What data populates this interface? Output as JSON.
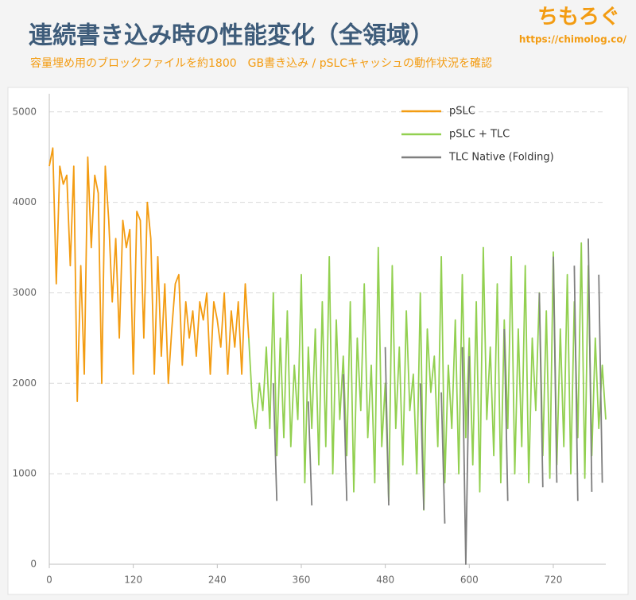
{
  "header": {
    "logo": "ちもろぐ",
    "url": "https://chimolog.co/"
  },
  "chart_data": {
    "type": "line",
    "title": "連続書き込み時の性能変化（全領域）",
    "subtitle": "容量埋め用のブロックファイルを約1800　GB書き込み / pSLCキャッシュの動作状況を確認",
    "x": [
      0,
      5,
      10,
      15,
      20,
      25,
      30,
      35,
      40,
      45,
      50,
      55,
      60,
      65,
      70,
      75,
      80,
      85,
      90,
      95,
      100,
      105,
      110,
      115,
      120,
      125,
      130,
      135,
      140,
      145,
      150,
      155,
      160,
      165,
      170,
      175,
      180,
      185,
      190,
      195,
      200,
      205,
      210,
      215,
      220,
      225,
      230,
      235,
      240,
      245,
      250,
      255,
      260,
      265,
      270,
      275,
      280,
      285,
      290,
      295,
      300,
      305,
      310,
      315,
      320,
      325,
      330,
      335,
      340,
      345,
      350,
      355,
      360,
      365,
      370,
      375,
      380,
      385,
      390,
      395,
      400,
      405,
      410,
      415,
      420,
      425,
      430,
      435,
      440,
      445,
      450,
      455,
      460,
      465,
      470,
      475,
      480,
      485,
      490,
      495,
      500,
      505,
      510,
      515,
      520,
      525,
      530,
      535,
      540,
      545,
      550,
      555,
      560,
      565,
      570,
      575,
      580,
      585,
      590,
      595,
      600,
      605,
      610,
      615,
      620,
      625,
      630,
      635,
      640,
      645,
      650,
      655,
      660,
      665,
      670,
      675,
      680,
      685,
      690,
      695,
      700,
      705,
      710,
      715,
      720,
      725,
      730,
      735,
      740,
      745,
      750,
      755,
      760,
      765,
      770,
      775,
      780,
      785,
      790,
      795
    ],
    "series": [
      {
        "name": "pSLC",
        "color": "#f39c12",
        "values": [
          4400,
          4600,
          3100,
          4400,
          4200,
          4300,
          3300,
          4400,
          1800,
          3300,
          2100,
          4500,
          3500,
          4300,
          4100,
          2000,
          4400,
          3800,
          2900,
          3600,
          2500,
          3800,
          3500,
          3700,
          2100,
          3900,
          3800,
          2500,
          4000,
          3600,
          2100,
          3400,
          2300,
          3100,
          2000,
          2600,
          3100,
          3200,
          2200,
          2900,
          2500,
          2800,
          2300,
          2900,
          2700,
          3000,
          2100,
          2900,
          2700,
          2400,
          3000,
          2100,
          2800,
          2400,
          2900,
          2100,
          3100,
          2500,
          null,
          null,
          null,
          null,
          null,
          null,
          null,
          null,
          null,
          null,
          null,
          null,
          null,
          null,
          null,
          null,
          null,
          null,
          null,
          null,
          null,
          null,
          null,
          null,
          null,
          null,
          null,
          null,
          null,
          null,
          null,
          null,
          null,
          null,
          null,
          null,
          null,
          null,
          null,
          null,
          null,
          null,
          null,
          null,
          null,
          null,
          null,
          null,
          null,
          null,
          null,
          null,
          null,
          null,
          null,
          null,
          null,
          null,
          null,
          null,
          null,
          null,
          null,
          null,
          null,
          null,
          null,
          null,
          null,
          null,
          null,
          null,
          null,
          null,
          null,
          null,
          null,
          null,
          null,
          null,
          null,
          null,
          null,
          null,
          null,
          null,
          null,
          null,
          null,
          null,
          null,
          null,
          null,
          null,
          null,
          null,
          null,
          null,
          null,
          null,
          null,
          null
        ]
      },
      {
        "name": "pSLC + TLC",
        "color": "#92d050",
        "values": [
          null,
          null,
          null,
          null,
          null,
          null,
          null,
          null,
          null,
          null,
          null,
          null,
          null,
          null,
          null,
          null,
          null,
          null,
          null,
          null,
          null,
          null,
          null,
          null,
          null,
          null,
          null,
          null,
          null,
          null,
          null,
          null,
          null,
          null,
          null,
          null,
          null,
          null,
          null,
          null,
          null,
          null,
          null,
          null,
          null,
          null,
          null,
          null,
          null,
          null,
          null,
          null,
          null,
          null,
          null,
          null,
          null,
          2500,
          1800,
          1500,
          2000,
          1700,
          2400,
          1500,
          3000,
          1200,
          2500,
          1400,
          2800,
          1300,
          2200,
          1600,
          3200,
          900,
          2400,
          1500,
          2600,
          1100,
          2900,
          1300,
          3400,
          1000,
          2700,
          1600,
          2300,
          1200,
          2900,
          800,
          2500,
          1700,
          3100,
          1400,
          2200,
          900,
          3500,
          1300,
          2000,
          700,
          3300,
          1500,
          2400,
          1100,
          2800,
          1700,
          2100,
          1000,
          3000,
          600,
          2600,
          1900,
          2300,
          1300,
          3400,
          900,
          2200,
          1500,
          2700,
          1000,
          3200,
          1400,
          2500,
          1100,
          2900,
          800,
          3500,
          1600,
          2400,
          1200,
          3100,
          900,
          2700,
          1500,
          3400,
          1000,
          2600,
          1300,
          3300,
          900,
          2500,
          1700,
          3000,
          1200,
          2800,
          950,
          3450,
          1100,
          2600,
          1300,
          3200,
          1000,
          2900,
          1400,
          3550,
          950,
          3300,
          1200,
          2500,
          1500,
          2200,
          1600
        ]
      },
      {
        "name": "TLC Native (Folding)",
        "color": "#7f7f7f",
        "values": [
          null,
          null,
          null,
          null,
          null,
          null,
          null,
          null,
          null,
          null,
          null,
          null,
          null,
          null,
          null,
          null,
          null,
          null,
          null,
          null,
          null,
          null,
          null,
          null,
          null,
          null,
          null,
          null,
          null,
          null,
          null,
          null,
          null,
          null,
          null,
          null,
          null,
          null,
          null,
          null,
          null,
          null,
          null,
          null,
          null,
          null,
          null,
          null,
          null,
          null,
          null,
          null,
          null,
          null,
          null,
          null,
          null,
          null,
          null,
          null,
          null,
          null,
          null,
          null,
          2000,
          700,
          null,
          null,
          null,
          null,
          null,
          null,
          null,
          null,
          1800,
          650,
          null,
          null,
          null,
          null,
          null,
          null,
          null,
          null,
          2100,
          700,
          null,
          null,
          null,
          null,
          null,
          null,
          null,
          null,
          null,
          null,
          2400,
          650,
          null,
          null,
          null,
          null,
          null,
          null,
          null,
          null,
          2000,
          600,
          null,
          null,
          null,
          null,
          1900,
          450,
          null,
          null,
          null,
          null,
          2400,
          0,
          2300,
          null,
          null,
          null,
          null,
          null,
          null,
          null,
          null,
          null,
          2600,
          700,
          null,
          null,
          null,
          null,
          null,
          null,
          null,
          null,
          3000,
          850,
          null,
          null,
          3400,
          900,
          null,
          null,
          null,
          null,
          3300,
          700,
          null,
          null,
          3600,
          800,
          null,
          3200,
          900,
          null
        ]
      }
    ],
    "xlim": [
      0,
      795
    ],
    "xticks": [
      0,
      120,
      240,
      360,
      480,
      600,
      720
    ],
    "ylim": [
      0,
      5200
    ],
    "yticks": [
      0,
      1000,
      2000,
      3000,
      4000,
      5000
    ],
    "grid": true,
    "legend": "upper right"
  }
}
